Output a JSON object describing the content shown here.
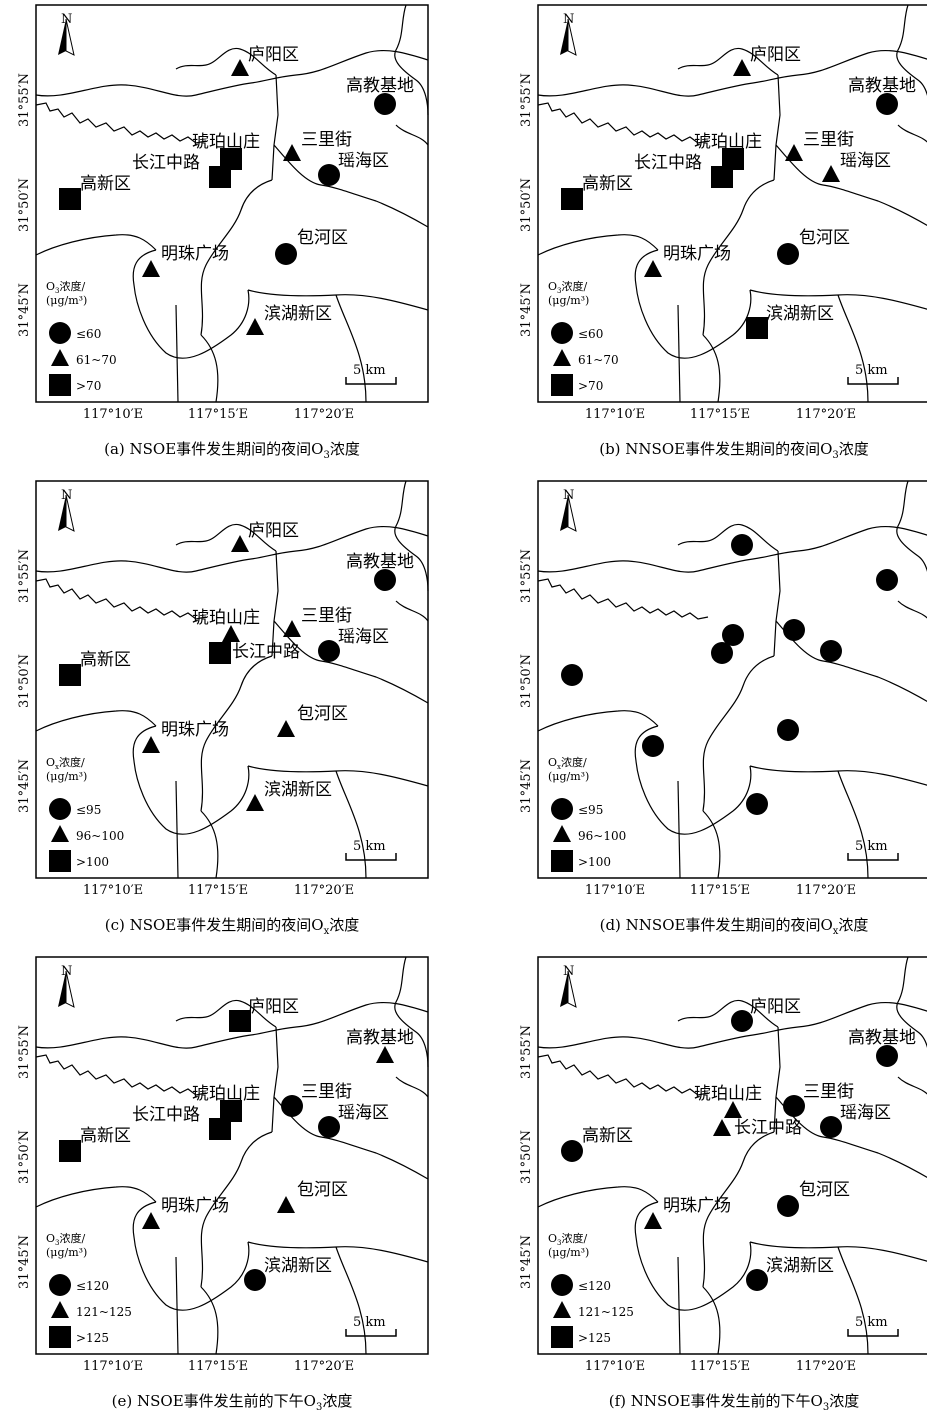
{
  "axis_labels": {
    "lat": [
      "31°55′N",
      "31°50′N",
      "31°45′N"
    ],
    "lon": [
      "117°10′E",
      "117°15′E",
      "117°20′E"
    ]
  },
  "north_label": "N",
  "scale_label": "5 km",
  "legend_title_line1": "浓度/",
  "legend_title_line2": "(μg/m³)",
  "place_names": [
    "庐阳区",
    "高教基地",
    "琥珀山庄",
    "三里街",
    "瑶海区",
    "长江中路",
    "高新区",
    "包河区",
    "明珠广场",
    "滨湖新区"
  ],
  "panels": [
    {
      "caption": "(a) NSOE事件发生期间的夜间O",
      "caption_sub": "3",
      "caption_tail": "浓度",
      "legend_species": "O",
      "legend_sub": "3",
      "legend": [
        "≤60",
        "61~70",
        ">70"
      ],
      "station_classes": {
        "luyang": 1,
        "gaojiao": 0,
        "hupo": 2,
        "sanli": 1,
        "yaohai": 0,
        "changjiang": 2,
        "gaoxin": 2,
        "baohe": 0,
        "mingzhu": 1,
        "binhu": 1
      }
    },
    {
      "caption": "(b) NNSOE事件发生期间的夜间O",
      "caption_sub": "3",
      "caption_tail": "浓度",
      "legend_species": "O",
      "legend_sub": "3",
      "legend": [
        "≤60",
        "61~70",
        ">70"
      ],
      "station_classes": {
        "luyang": 1,
        "gaojiao": 0,
        "hupo": 2,
        "sanli": 1,
        "yaohai": 1,
        "changjiang": 2,
        "gaoxin": 2,
        "baohe": 0,
        "mingzhu": 1,
        "binhu": 2
      }
    },
    {
      "caption": "(c) NSOE事件发生期间的夜间O",
      "caption_sub": "x",
      "caption_tail": "浓度",
      "legend_species": "O",
      "legend_sub": "x",
      "legend": [
        "≤95",
        "96~100",
        ">100"
      ],
      "station_classes": {
        "luyang": 1,
        "gaojiao": 0,
        "hupo": 1,
        "sanli": 1,
        "yaohai": 0,
        "changjiang": 2,
        "gaoxin": 2,
        "baohe": 1,
        "mingzhu": 1,
        "binhu": 1
      }
    },
    {
      "caption": "(d) NNSOE事件发生期间的夜间O",
      "caption_sub": "x",
      "caption_tail": "浓度",
      "legend_species": "O",
      "legend_sub": "x",
      "legend": [
        "≤95",
        "96~100",
        ">100"
      ],
      "station_classes": {
        "luyang": 0,
        "gaojiao": 0,
        "hupo": 0,
        "sanli": 0,
        "yaohai": 0,
        "changjiang": 0,
        "gaoxin": 0,
        "baohe": 0,
        "mingzhu": 0,
        "binhu": 0
      }
    },
    {
      "caption": "(e) NSOE事件发生前的下午O",
      "caption_sub": "3",
      "caption_tail": "浓度",
      "legend_species": "O",
      "legend_sub": "3",
      "legend": [
        "≤120",
        "121~125",
        ">125"
      ],
      "station_classes": {
        "luyang": 2,
        "gaojiao": 1,
        "hupo": 2,
        "sanli": 0,
        "yaohai": 0,
        "changjiang": 2,
        "gaoxin": 2,
        "baohe": 1,
        "mingzhu": 1,
        "binhu": 0
      }
    },
    {
      "caption": "(f) NNSOE事件发生前的下午O",
      "caption_sub": "3",
      "caption_tail": "浓度",
      "legend_species": "O",
      "legend_sub": "3",
      "legend": [
        "≤120",
        "121~125",
        ">125"
      ],
      "station_classes": {
        "luyang": 0,
        "gaojiao": 0,
        "hupo": 1,
        "sanli": 0,
        "yaohai": 0,
        "changjiang": 1,
        "gaoxin": 0,
        "baohe": 0,
        "mingzhu": 1,
        "binhu": 0
      }
    }
  ]
}
